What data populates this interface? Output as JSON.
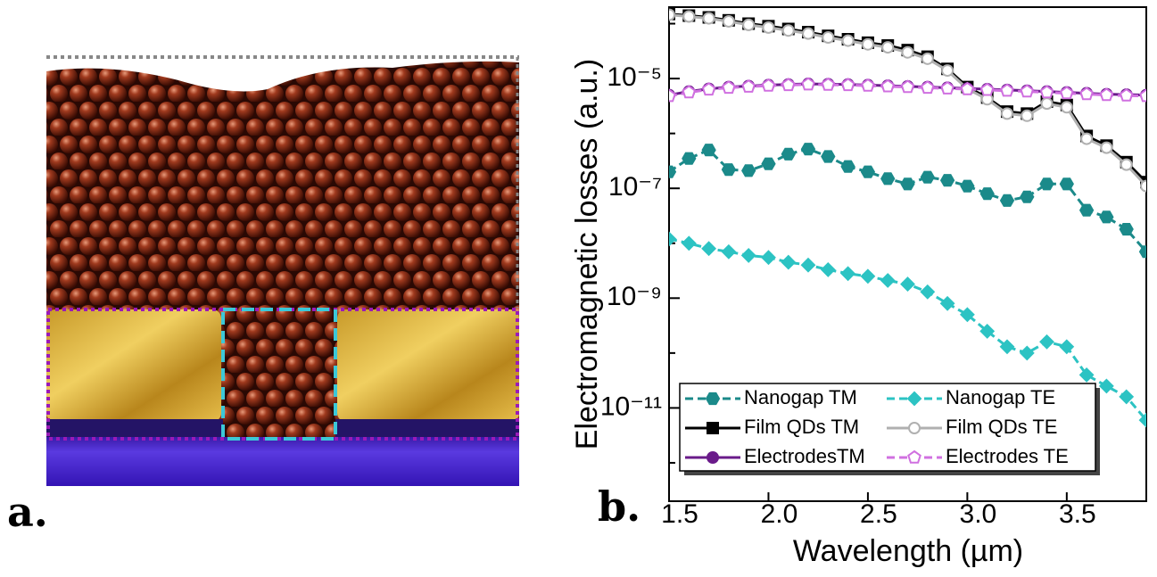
{
  "panel_labels": [
    "a.",
    "b."
  ],
  "chart_data": {
    "type": "line",
    "x_label": "Wavelength (µm)",
    "y_label": "Electromagnetic losses (a.u.)",
    "log_y": true,
    "x": [
      1.5,
      1.6,
      1.7,
      1.8,
      1.9,
      2.0,
      2.1,
      2.2,
      2.3,
      2.4,
      2.5,
      2.6,
      2.7,
      2.8,
      2.9,
      3.0,
      3.1,
      3.2,
      3.3,
      3.4,
      3.5,
      3.6,
      3.7,
      3.8,
      3.9
    ],
    "xlim": [
      1.5,
      3.9
    ],
    "xticks": [
      1.5,
      {
        "value": 2,
        "label": "2.0"
      },
      2.5,
      {
        "value": 3,
        "label": "3.0"
      },
      3.5
    ],
    "ylim": [
      2e-13,
      0.0002
    ],
    "yticks": [
      {
        "value": 1e-11,
        "label": "10⁻¹¹"
      },
      {
        "value": 1e-09,
        "label": "10⁻⁹"
      },
      {
        "value": 1e-07,
        "label": "10⁻⁷"
      },
      {
        "value": 1e-05,
        "label": "10⁻⁵"
      }
    ],
    "yticks_minor": [
      1e-12,
      1e-10,
      1e-08,
      1e-06,
      0.0001
    ],
    "legend": "lower left",
    "series": [
      {
        "name": "Nanogap TM",
        "color": "#1b8a8a",
        "marker": "hexagon",
        "dashed": true,
        "values": [
          2e-07,
          3.5e-07,
          5e-07,
          2.2e-07,
          2.1e-07,
          2.8e-07,
          4.2e-07,
          5.2e-07,
          3.8e-07,
          2.5e-07,
          2e-07,
          1.5e-07,
          1.2e-07,
          1.6e-07,
          1.4e-07,
          1.1e-07,
          8e-08,
          6e-08,
          7e-08,
          1.2e-07,
          1.2e-07,
          4e-08,
          3e-08,
          1.8e-08,
          7e-09
        ]
      },
      {
        "name": "Nanogap TE",
        "color": "#2cc3c3",
        "marker": "diamond",
        "dashed": true,
        "values": [
          1.2e-08,
          1e-08,
          8e-09,
          7e-09,
          6e-09,
          5.5e-09,
          4.5e-09,
          4e-09,
          3.3e-09,
          2.8e-09,
          2.5e-09,
          2.1e-09,
          1.8e-09,
          1.3e-09,
          8e-10,
          5e-10,
          2.5e-10,
          1.3e-10,
          1e-10,
          1.6e-10,
          1.3e-10,
          4e-11,
          2.5e-11,
          1.6e-11,
          6e-12
        ]
      },
      {
        "name": "Film QDs TM",
        "color": "#000000",
        "marker": "square",
        "dashed": false,
        "values": [
          0.00015,
          0.00014,
          0.00013,
          0.000115,
          0.0001,
          9e-05,
          8e-05,
          7e-05,
          6e-05,
          5.2e-05,
          4.5e-05,
          4e-05,
          3.3e-05,
          2.5e-05,
          1.5e-05,
          7e-06,
          4.5e-06,
          2.5e-06,
          2.3e-06,
          3.8e-06,
          3.3e-06,
          9e-07,
          6e-07,
          3e-07,
          1.3e-07
        ]
      },
      {
        "name": " Film QDs TE",
        "color": "#b0b0b0",
        "marker": "open-circle",
        "dashed": false,
        "values": [
          0.000145,
          0.000135,
          0.000125,
          0.00011,
          9.5e-05,
          8.5e-05,
          7.5e-05,
          6.6e-05,
          5.6e-05,
          4.9e-05,
          4.2e-05,
          3.7e-05,
          3e-05,
          2.3e-05,
          1.4e-05,
          6.5e-06,
          4.2e-06,
          2.3e-06,
          2.1e-06,
          3.5e-06,
          3e-06,
          8e-07,
          5.5e-07,
          2.7e-07,
          1.1e-07
        ]
      },
      {
        "name": "ElectrodesTM",
        "color": "#6a1b8a",
        "marker": "circle",
        "dashed": false,
        "values": [
          5e-06,
          5.8e-06,
          6.5e-06,
          7e-06,
          7.3e-06,
          7.6e-06,
          7.8e-06,
          8e-06,
          7.9e-06,
          7.8e-06,
          7.6e-06,
          7.4e-06,
          7.2e-06,
          7e-06,
          6.8e-06,
          6.6e-06,
          6.4e-06,
          6.2e-06,
          6e-06,
          5.8e-06,
          5.6e-06,
          5.4e-06,
          5.2e-06,
          5.1e-06,
          5e-06
        ]
      },
      {
        "name": "Electrodes TE",
        "color": "#d070e0",
        "marker": "open-pentagon",
        "dashed": true,
        "values": [
          4.8e-06,
          5.6e-06,
          6.3e-06,
          6.8e-06,
          7.1e-06,
          7.4e-06,
          7.6e-06,
          7.8e-06,
          7.7e-06,
          7.6e-06,
          7.4e-06,
          7.2e-06,
          7e-06,
          6.8e-06,
          6.6e-06,
          6.4e-06,
          6.2e-06,
          6e-06,
          5.8e-06,
          5.6e-06,
          5.4e-06,
          5.2e-06,
          5e-06,
          4.9e-06,
          4.8e-06
        ]
      }
    ]
  }
}
